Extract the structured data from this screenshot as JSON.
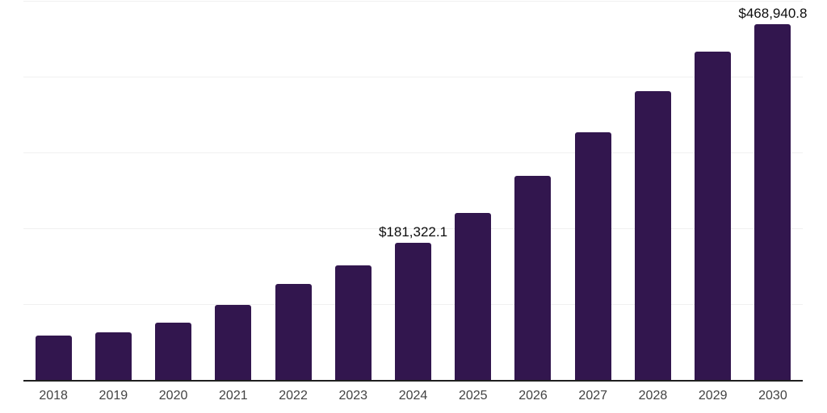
{
  "chart_data": {
    "type": "bar",
    "title": "",
    "xlabel": "",
    "ylabel": "",
    "categories": [
      "2018",
      "2019",
      "2020",
      "2021",
      "2022",
      "2023",
      "2024",
      "2025",
      "2026",
      "2027",
      "2028",
      "2029",
      "2030"
    ],
    "values": [
      59000,
      63200,
      76000,
      99100,
      127000,
      151400,
      181322.1,
      220200,
      268700,
      326500,
      380700,
      433400,
      468940.8
    ],
    "data_labels": [
      "",
      "",
      "",
      "",
      "",
      "",
      "$181,322.1",
      "",
      "",
      "",
      "",
      "",
      "$468,940.8"
    ],
    "labeled_values_note": "only 2024 and 2030 carry visible data labels; other values estimated from gridlines",
    "ylim": [
      0,
      500000
    ],
    "gridline_interval": 100000,
    "grid": "horizontal",
    "legend": "none",
    "y_tick_labels_visible": false,
    "colors": {
      "bar": "#32164E",
      "axis_line": "#1f1f1f",
      "gridline": "#f0f0f0",
      "data_label": "#0d0d0d",
      "tick_label": "#424242",
      "background": "#ffffff"
    }
  }
}
